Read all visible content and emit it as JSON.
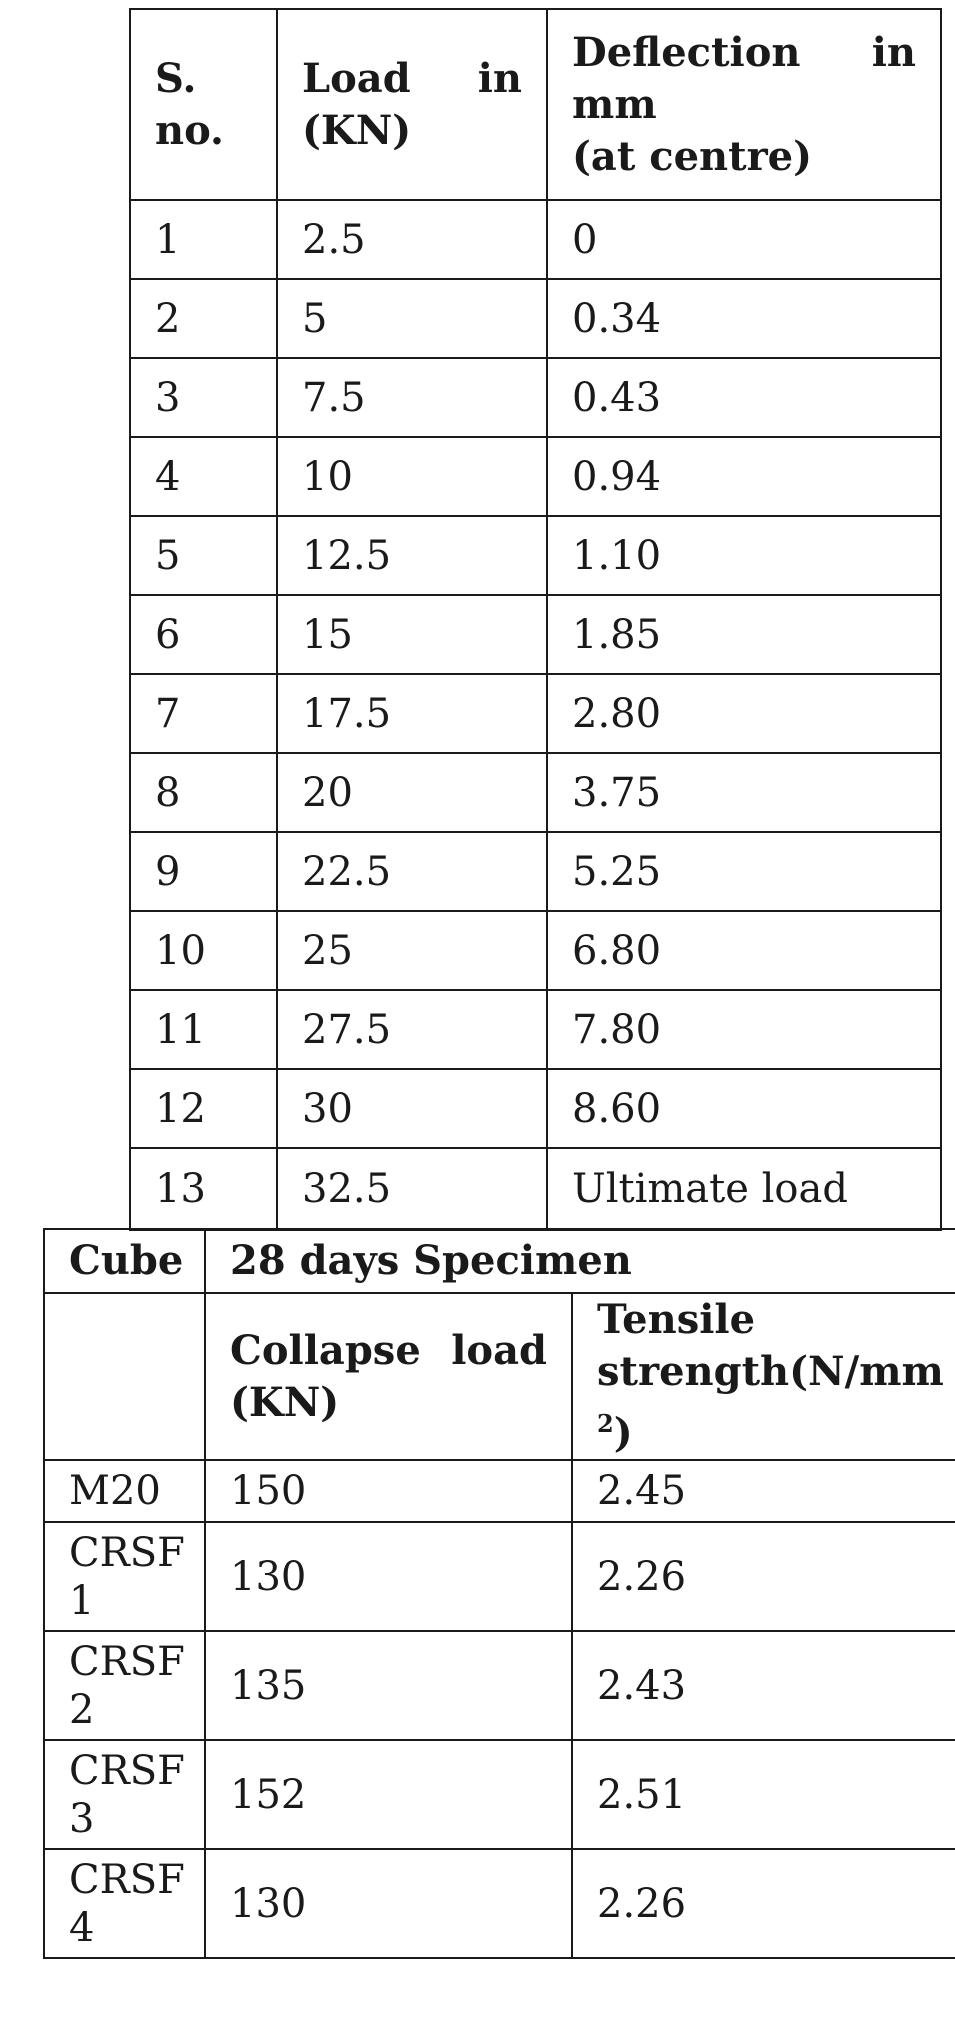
{
  "deflection_table": {
    "headers": {
      "sno": [
        "S.",
        "no."
      ],
      "load": [
        "Load",
        "in",
        "(KN)"
      ],
      "deflection": [
        "Deflection",
        "in",
        "mm",
        "(at centre)"
      ]
    },
    "rows": [
      {
        "sno": "1",
        "load": "2.5",
        "deflection": "0"
      },
      {
        "sno": "2",
        "load": "5",
        "deflection": "0.34"
      },
      {
        "sno": "3",
        "load": "7.5",
        "deflection": "0.43"
      },
      {
        "sno": "4",
        "load": "10",
        "deflection": "0.94"
      },
      {
        "sno": "5",
        "load": "12.5",
        "deflection": "1.10"
      },
      {
        "sno": "6",
        "load": "15",
        "deflection": "1.85"
      },
      {
        "sno": "7",
        "load": "17.5",
        "deflection": "2.80"
      },
      {
        "sno": "8",
        "load": "20",
        "deflection": "3.75"
      },
      {
        "sno": "9",
        "load": "22.5",
        "deflection": "5.25"
      },
      {
        "sno": "10",
        "load": "25",
        "deflection": "6.80"
      },
      {
        "sno": "11",
        "load": "27.5",
        "deflection": "7.80"
      },
      {
        "sno": "12",
        "load": "30",
        "deflection": "8.60"
      },
      {
        "sno": "13",
        "load": "32.5",
        "deflection": "Ultimate load"
      }
    ]
  },
  "strength_table": {
    "headers": {
      "cube": "Cube",
      "group": "28 days Specimen",
      "collapse": [
        "Collapse",
        "load",
        "(KN)"
      ],
      "tensile": [
        "Tensile",
        "strength(N/mm",
        "2",
        ")"
      ]
    },
    "rows": [
      {
        "cube": "M20",
        "collapse": "150",
        "tensile": "2.45"
      },
      {
        "cube": "CRSF 1",
        "collapse": "130",
        "tensile": "2.26"
      },
      {
        "cube": "CRSF 2",
        "collapse": "135",
        "tensile": "2.43"
      },
      {
        "cube": "CRSF 3",
        "collapse": "152",
        "tensile": "2.51"
      },
      {
        "cube": "CRSF 4",
        "collapse": "130",
        "tensile": "2.26"
      }
    ]
  }
}
